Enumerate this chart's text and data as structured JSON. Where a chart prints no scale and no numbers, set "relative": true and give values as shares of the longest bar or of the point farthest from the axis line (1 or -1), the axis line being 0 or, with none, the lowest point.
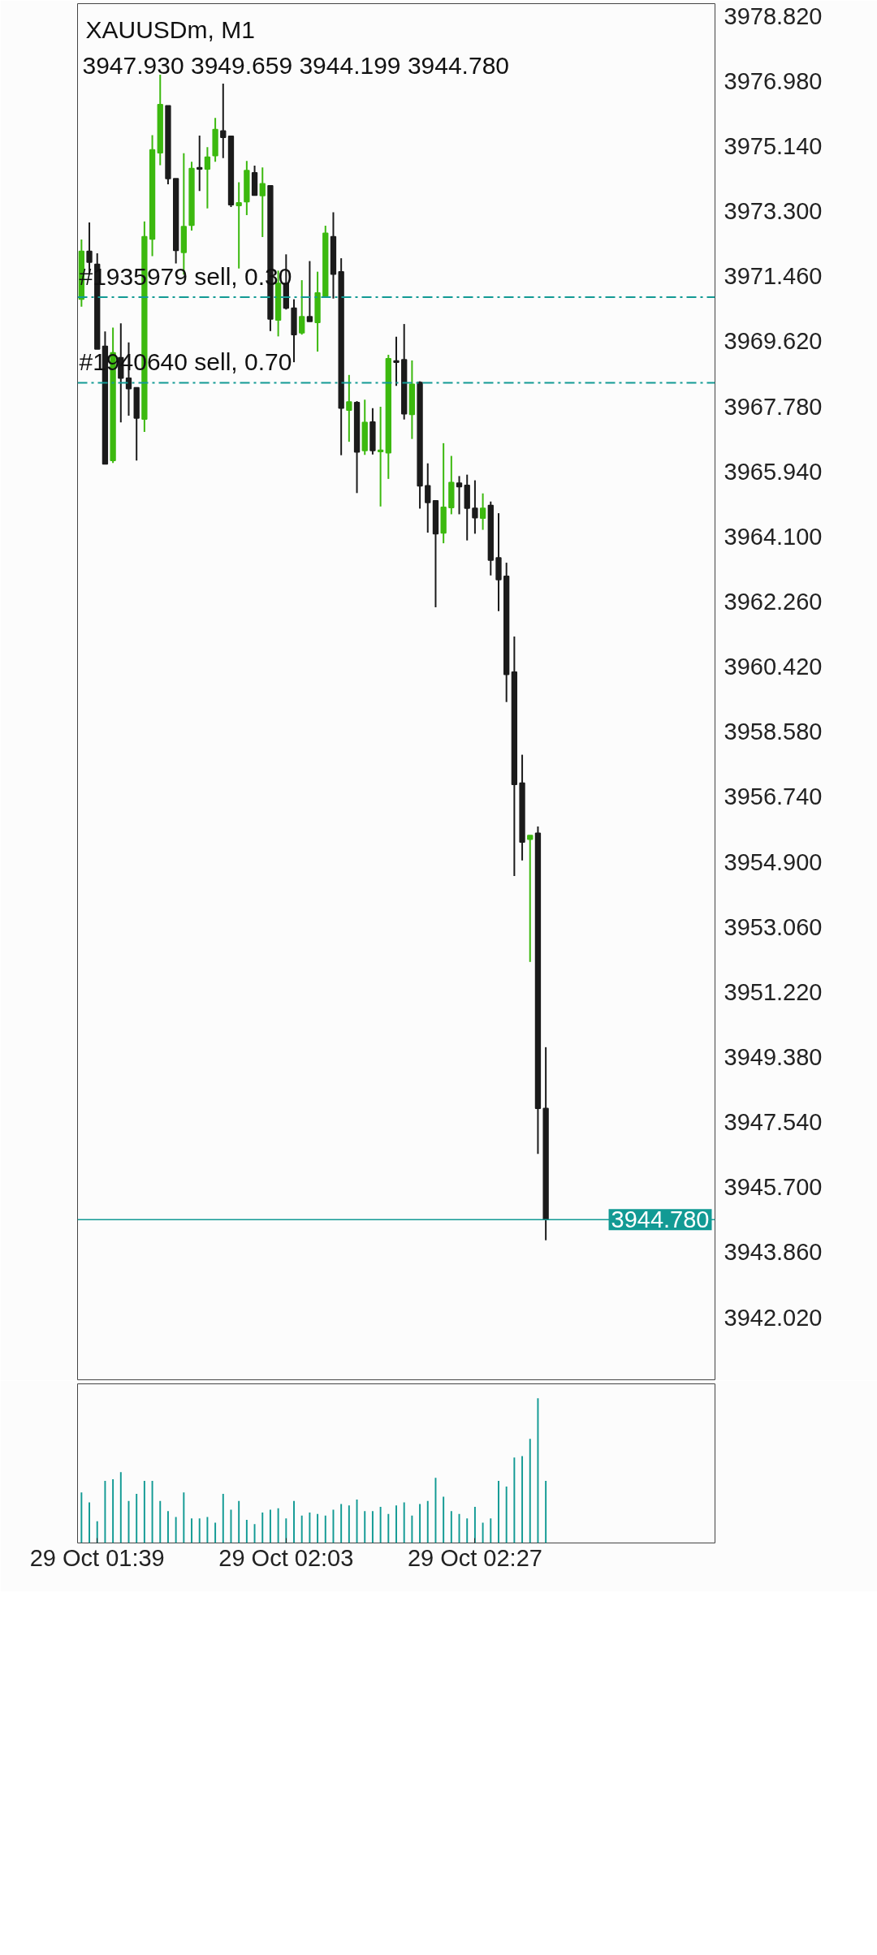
{
  "chart_data": [
    {
      "type": "candlestick",
      "title": "XAUUSDm, M1",
      "subtitle": "3947.930 3949.659 3944.199 3944.780",
      "categories": [
        null,
        null,
        "29 Oct 01:39",
        null,
        null,
        null,
        null,
        null,
        null,
        null,
        null,
        null,
        null,
        null,
        null,
        null,
        null,
        null,
        null,
        null,
        null,
        null,
        null,
        null,
        null,
        null,
        "29 Oct 02:03",
        null,
        null,
        null,
        null,
        null,
        null,
        null,
        null,
        null,
        null,
        null,
        null,
        null,
        null,
        null,
        null,
        null,
        null,
        null,
        null,
        null,
        null,
        null,
        "29 Oct 02:27",
        null,
        null,
        null,
        null,
        null,
        null,
        null,
        null,
        null,
        null,
        null,
        null,
        null,
        null,
        null,
        null,
        null,
        null,
        null,
        null,
        null,
        null,
        null,
        null,
        null,
        null,
        null,
        null,
        null,
        null
      ],
      "ohlc": [
        [
          3970.81,
          3972.5,
          3970.6,
          3972.17
        ],
        [
          3972.17,
          3972.98,
          3971.51,
          3971.86
        ],
        [
          3971.8,
          3972.11,
          3969.4,
          3969.4
        ],
        [
          3969.48,
          3969.9,
          3966.15,
          3966.15
        ],
        [
          3966.25,
          3970.01,
          3966.18,
          3969.3
        ],
        [
          3969.16,
          3970.13,
          3967.33,
          3968.58
        ],
        [
          3968.58,
          3969.59,
          3967.52,
          3968.28
        ],
        [
          3968.31,
          3968.31,
          3966.25,
          3967.45
        ],
        [
          3967.42,
          3973.01,
          3967.06,
          3972.58
        ],
        [
          3972.51,
          3975.45,
          3972.03,
          3975.04
        ],
        [
          3974.95,
          3977.16,
          3974.6,
          3976.32
        ],
        [
          3976.28,
          3976.28,
          3974.06,
          3974.22
        ],
        [
          3974.22,
          3974.22,
          3971.82,
          3972.19
        ],
        [
          3972.13,
          3974.94,
          3971.51,
          3972.87
        ],
        [
          3972.9,
          3974.7,
          3972.75,
          3974.51
        ],
        [
          3974.53,
          3975.44,
          3973.87,
          3974.49
        ],
        [
          3974.49,
          3975.11,
          3973.38,
          3974.83
        ],
        [
          3974.87,
          3975.94,
          3974.7,
          3975.61
        ],
        [
          3975.57,
          3976.91,
          3974.8,
          3975.39
        ],
        [
          3975.42,
          3975.42,
          3973.42,
          3973.48
        ],
        [
          3973.46,
          3974.12,
          3971.68,
          3973.54
        ],
        [
          3973.57,
          3974.72,
          3973.19,
          3974.45
        ],
        [
          3974.39,
          3974.59,
          3973.75,
          3973.75
        ],
        [
          3973.74,
          3974.54,
          3972.57,
          3974.08
        ],
        [
          3974.02,
          3974.02,
          3969.91,
          3970.25
        ],
        [
          3970.22,
          3971.62,
          3969.76,
          3971.26
        ],
        [
          3971.26,
          3972.08,
          3970.52,
          3970.56
        ],
        [
          3970.56,
          3970.81,
          3969.03,
          3969.81
        ],
        [
          3969.86,
          3971.35,
          3969.81,
          3970.32
        ],
        [
          3970.32,
          3971.89,
          3970.18,
          3970.18
        ],
        [
          3970.15,
          3971.59,
          3969.33,
          3970.99
        ],
        [
          3970.9,
          3972.89,
          3970.89,
          3972.68
        ],
        [
          3972.58,
          3973.27,
          3970.83,
          3971.52
        ],
        [
          3971.59,
          3971.97,
          3966.4,
          3967.73
        ],
        [
          3967.67,
          3968.67,
          3966.78,
          3967.91
        ],
        [
          3967.89,
          3967.93,
          3965.33,
          3966.49
        ],
        [
          3966.53,
          3967.97,
          3966.41,
          3967.33
        ],
        [
          3967.34,
          3967.73,
          3966.42,
          3966.53
        ],
        [
          3966.5,
          3967.77,
          3964.95,
          3966.54
        ],
        [
          3966.47,
          3969.24,
          3965.73,
          3969.13
        ],
        [
          3969.07,
          3969.75,
          3968.36,
          3969.03
        ],
        [
          3969.1,
          3970.11,
          3967.41,
          3967.57
        ],
        [
          3967.55,
          3969.08,
          3966.86,
          3968.41
        ],
        [
          3968.46,
          3968.49,
          3964.89,
          3965.53
        ],
        [
          3965.54,
          3966.17,
          3964.21,
          3965.06
        ],
        [
          3965.11,
          3965.12,
          3962.1,
          3964.18
        ],
        [
          3964.2,
          3966.74,
          3963.91,
          3964.93
        ],
        [
          3964.92,
          3966.38,
          3964.73,
          3965.63
        ],
        [
          3965.61,
          3965.81,
          3964.73,
          3965.51
        ],
        [
          3965.55,
          3965.85,
          3963.99,
          3964.9
        ],
        [
          3964.9,
          3965.69,
          3964.18,
          3964.63
        ],
        [
          3964.62,
          3965.32,
          3964.29,
          3964.9
        ],
        [
          3964.98,
          3965.09,
          3963.0,
          3963.43
        ],
        [
          3963.5,
          3964.76,
          3961.99,
          3962.88
        ],
        [
          3962.98,
          3963.36,
          3959.42,
          3960.2
        ],
        [
          3960.27,
          3961.27,
          3954.5,
          3957.09
        ],
        [
          3957.13,
          3957.93,
          3954.94,
          3955.46
        ],
        [
          3955.54,
          3955.65,
          3952.07,
          3955.65
        ],
        [
          3955.71,
          3955.9,
          3946.64,
          3947.93
        ],
        [
          3947.93,
          3949.659,
          3944.199,
          3944.78
        ],
        null,
        null,
        null,
        null,
        null,
        null,
        null,
        null,
        null,
        null,
        null,
        null,
        null,
        null,
        null,
        null,
        null,
        null,
        null,
        null,
        null
      ],
      "colors": [
        "#3cb90f",
        "#1b1b1b",
        "#1b1b1b",
        "#1b1b1b",
        "#3cb90f",
        "#1b1b1b",
        "#1b1b1b",
        "#1b1b1b",
        "#3cb90f",
        "#3cb90f",
        "#3cb90f",
        "#1b1b1b",
        "#1b1b1b",
        "#3cb90f",
        "#3cb90f",
        "#1b1b1b",
        "#3cb90f",
        "#3cb90f",
        "#1b1b1b",
        "#1b1b1b",
        "#3cb90f",
        "#3cb90f",
        "#1b1b1b",
        "#3cb90f",
        "#1b1b1b",
        "#3cb90f",
        "#1b1b1b",
        "#1b1b1b",
        "#3cb90f",
        "#1b1b1b",
        "#3cb90f",
        "#3cb90f",
        "#1b1b1b",
        "#1b1b1b",
        "#3cb90f",
        "#1b1b1b",
        "#3cb90f",
        "#1b1b1b",
        "#3cb90f",
        "#3cb90f",
        "#1b1b1b",
        "#1b1b1b",
        "#3cb90f",
        "#1b1b1b",
        "#1b1b1b",
        "#1b1b1b",
        "#3cb90f",
        "#3cb90f",
        "#1b1b1b",
        "#1b1b1b",
        "#1b1b1b",
        "#3cb90f",
        "#1b1b1b",
        "#1b1b1b",
        "#1b1b1b",
        "#1b1b1b",
        "#1b1b1b",
        "#3cb90f",
        "#1b1b1b",
        "#1b1b1b",
        null,
        null,
        null,
        null,
        null,
        null,
        null,
        null,
        null,
        null,
        null,
        null,
        null,
        null,
        null,
        null,
        null,
        null,
        null,
        null,
        null
      ],
      "ylim": [
        3940.23,
        3979.17
      ],
      "yticks": [
        {
          "value": 3978.82,
          "label": "3978.820"
        },
        {
          "value": 3976.98,
          "label": "3976.980"
        },
        {
          "value": 3975.14,
          "label": "3975.140"
        },
        {
          "value": 3973.3,
          "label": "3973.300"
        },
        {
          "value": 3971.46,
          "label": "3971.460"
        },
        {
          "value": 3969.62,
          "label": "3969.620"
        },
        {
          "value": 3967.78,
          "label": "3967.780"
        },
        {
          "value": 3965.94,
          "label": "3965.940"
        },
        {
          "value": 3964.1,
          "label": "3964.100"
        },
        {
          "value": 3962.26,
          "label": "3962.260"
        },
        {
          "value": 3960.42,
          "label": "3960.420"
        },
        {
          "value": 3958.58,
          "label": "3958.580"
        },
        {
          "value": 3956.74,
          "label": "3956.740"
        },
        {
          "value": 3954.9,
          "label": "3954.900"
        },
        {
          "value": 3953.06,
          "label": "3953.060"
        },
        {
          "value": 3951.22,
          "label": "3951.220"
        },
        {
          "value": 3949.38,
          "label": "3949.380"
        },
        {
          "value": 3947.54,
          "label": "3947.540"
        },
        {
          "value": 3945.7,
          "label": "3945.700"
        },
        {
          "value": 3943.86,
          "label": "3943.860"
        },
        {
          "value": 3942.02,
          "label": "3942.020"
        }
      ],
      "ref_lines": [
        {
          "axis": "y",
          "value": 3970.87,
          "label": "#1935979 sell, 0.30",
          "color": "#129a94",
          "line_style": "dashed"
        },
        {
          "axis": "y",
          "value": 3968.45,
          "label": "#1940640 sell, 0.70",
          "color": "#129a94",
          "line_style": "dashed"
        },
        {
          "axis": "y",
          "value": 3944.78,
          "label": "3944.780",
          "color": "#129a94",
          "line_style": "solid"
        }
      ],
      "tick_labels": "y"
    },
    {
      "type": "bar",
      "relative": true,
      "color": "#129a94",
      "categories": [
        null,
        null,
        null,
        null,
        null,
        null,
        null,
        null,
        null,
        null,
        null,
        null,
        null,
        null,
        null,
        null,
        null,
        null,
        null,
        null,
        null,
        null,
        null,
        null,
        null,
        null,
        null,
        null,
        null,
        null,
        null,
        null,
        null,
        null,
        null,
        null,
        null,
        null,
        null,
        null,
        null,
        null,
        null,
        null,
        null,
        null,
        null,
        null,
        null,
        null,
        null,
        null,
        null,
        null,
        null,
        null,
        null,
        null,
        null,
        null,
        null,
        null,
        null,
        null,
        null,
        null,
        null,
        null,
        null,
        null,
        null,
        null,
        null,
        null,
        null,
        null,
        null,
        null,
        null,
        null,
        null
      ],
      "values": [
        0.35,
        0.28,
        0.15,
        0.43,
        0.44,
        0.49,
        0.29,
        0.34,
        0.43,
        0.43,
        0.29,
        0.22,
        0.18,
        0.35,
        0.17,
        0.17,
        0.18,
        0.14,
        0.34,
        0.23,
        0.29,
        0.16,
        0.13,
        0.21,
        0.23,
        0.24,
        0.17,
        0.29,
        0.19,
        0.21,
        0.2,
        0.19,
        0.23,
        0.27,
        0.26,
        0.3,
        0.22,
        0.22,
        0.25,
        0.2,
        0.26,
        0.28,
        0.19,
        0.27,
        0.29,
        0.45,
        0.32,
        0.22,
        0.2,
        0.17,
        0.25,
        0.14,
        0.17,
        0.43,
        0.39,
        0.59,
        0.6,
        0.72,
        1,
        0.43,
        null,
        null,
        null,
        null,
        null,
        null,
        null,
        null,
        null,
        null,
        null,
        null,
        null,
        null,
        null,
        null,
        null,
        null,
        null,
        null,
        null
      ],
      "tick_labels": "x"
    }
  ]
}
